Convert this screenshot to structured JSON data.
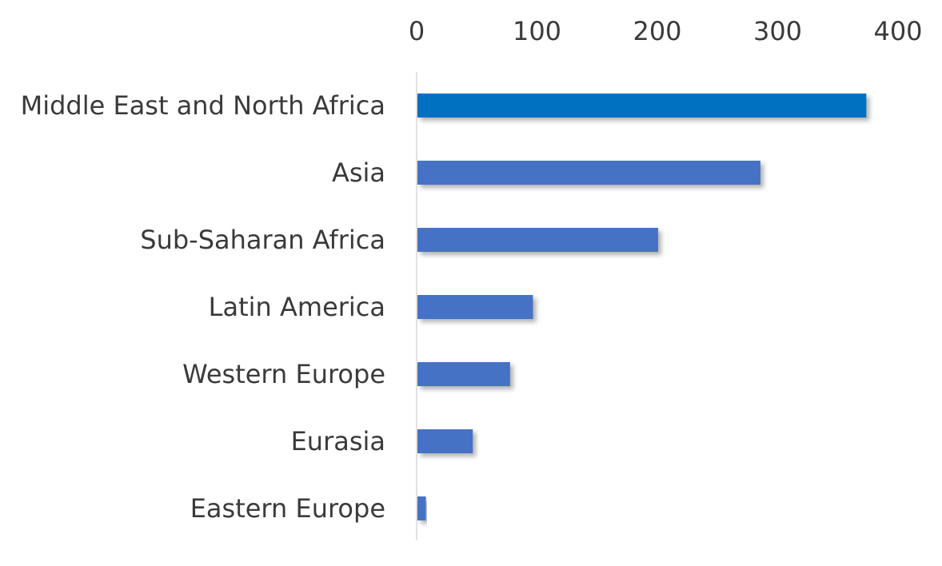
{
  "chart_data": {
    "type": "bar",
    "orientation": "horizontal",
    "title": "",
    "xlabel": "",
    "ylabel": "",
    "categories": [
      "Middle East and North Africa",
      "Asia",
      "Sub-Saharan Africa",
      "Latin America",
      "Western Europe",
      "Eurasia",
      "Eastern Europe"
    ],
    "values": [
      373,
      285,
      200,
      96,
      77,
      46,
      7
    ],
    "xlim": [
      0,
      400
    ],
    "x_ticks": [
      "0",
      "100",
      "200",
      "300",
      "400"
    ],
    "x_axis_position": "top",
    "grid": false,
    "legend": "none",
    "colors": {
      "highlight_bar": "#0070C0",
      "bar": "#4472C4",
      "axis_line": "#d9d9d9",
      "text": "#3a3a3a"
    }
  }
}
